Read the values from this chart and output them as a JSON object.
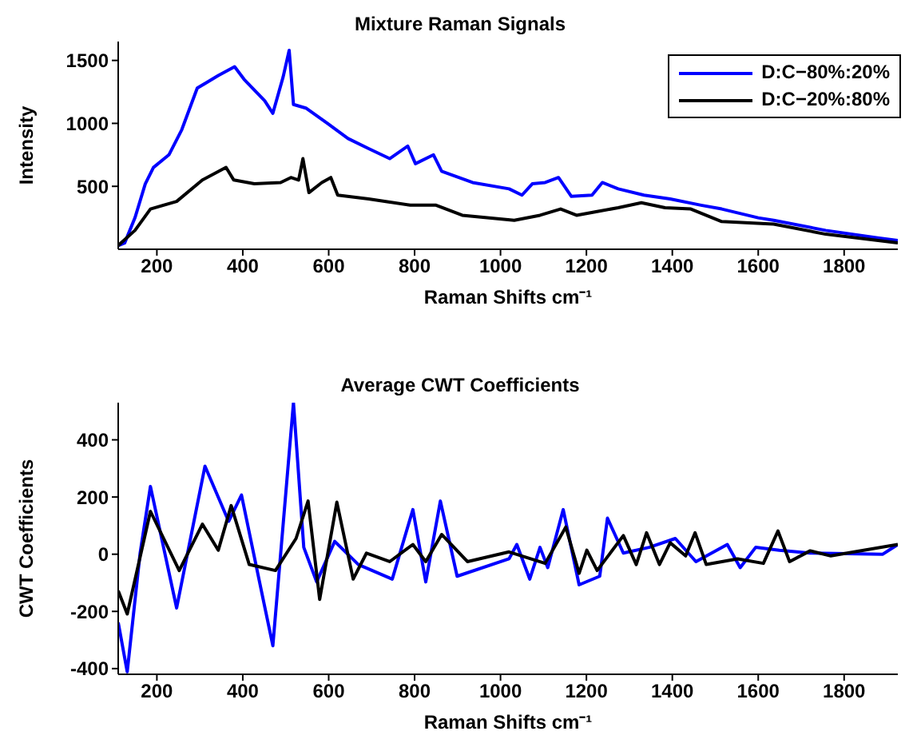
{
  "chart_data": [
    {
      "type": "line",
      "title": "Mixture Raman Signals",
      "xlabel": "Raman Shifts cm⁻¹",
      "ylabel": "Intensity",
      "xlim": [
        110,
        1925
      ],
      "xticks": [
        200,
        400,
        600,
        800,
        1000,
        1200,
        1400,
        1600,
        1800
      ],
      "ylim": [
        0,
        1650
      ],
      "yticks": [
        500,
        1000,
        1500
      ],
      "legend": "top right",
      "grid": false,
      "series": [
        {
          "name": "D:C−80%:20%",
          "color": "#0000ff",
          "x": [
            110,
            125,
            149,
            173,
            192,
            228,
            258,
            294,
            343,
            381,
            403,
            451,
            470,
            494,
            508,
            518,
            548,
            597,
            645,
            693,
            742,
            784,
            802,
            844,
            863,
            935,
            1020,
            1050,
            1074,
            1104,
            1135,
            1165,
            1213,
            1237,
            1274,
            1334,
            1395,
            1467,
            1515,
            1600,
            1636,
            1757,
            1878,
            1925
          ],
          "values": [
            30,
            50,
            250,
            520,
            650,
            750,
            950,
            1280,
            1380,
            1450,
            1350,
            1180,
            1080,
            1370,
            1580,
            1150,
            1120,
            1000,
            880,
            800,
            720,
            820,
            680,
            750,
            620,
            530,
            480,
            430,
            520,
            530,
            570,
            420,
            430,
            530,
            480,
            430,
            400,
            350,
            320,
            250,
            230,
            150,
            90,
            70
          ]
        },
        {
          "name": "D:C−20%:80%",
          "color": "#000000",
          "x": [
            110,
            149,
            185,
            246,
            306,
            361,
            379,
            427,
            488,
            512,
            530,
            540,
            554,
            584,
            605,
            621,
            693,
            790,
            850,
            911,
            1032,
            1092,
            1140,
            1177,
            1225,
            1274,
            1328,
            1383,
            1443,
            1515,
            1636,
            1757,
            1925
          ],
          "values": [
            30,
            150,
            320,
            380,
            550,
            650,
            550,
            520,
            530,
            570,
            550,
            720,
            450,
            530,
            570,
            430,
            400,
            350,
            350,
            270,
            230,
            270,
            320,
            270,
            300,
            330,
            370,
            330,
            320,
            220,
            200,
            120,
            50
          ]
        }
      ]
    },
    {
      "type": "line",
      "title": "Average CWT Coefficients",
      "xlabel": "Raman Shifts cm⁻¹",
      "ylabel": "CWT Coefficients",
      "xlim": [
        110,
        1925
      ],
      "xticks": [
        200,
        400,
        600,
        800,
        1000,
        1200,
        1400,
        1600,
        1800
      ],
      "ylim": [
        -420,
        530
      ],
      "yticks": [
        -400,
        -200,
        0,
        200,
        400
      ],
      "grid": false,
      "series": [
        {
          "color": "#0000ff",
          "x": [
            110,
            131,
            161,
            185,
            246,
            312,
            367,
            397,
            439,
            470,
            494,
            518,
            542,
            572,
            614,
            669,
            748,
            796,
            826,
            860,
            899,
            1020,
            1038,
            1068,
            1092,
            1110,
            1146,
            1183,
            1231,
            1249,
            1286,
            1346,
            1407,
            1455,
            1528,
            1558,
            1594,
            1649,
            1721,
            1890,
            1925
          ],
          "values": [
            -239,
            -411,
            4,
            237,
            -188,
            308,
            115,
            207,
            -97,
            -320,
            105,
            530,
            24,
            -97,
            45,
            -36,
            -87,
            156,
            -97,
            186,
            -77,
            -16,
            34,
            -87,
            24,
            -47,
            156,
            -107,
            -77,
            126,
            4,
            24,
            55,
            -26,
            34,
            -47,
            24,
            14,
            4,
            0,
            34
          ]
        },
        {
          "color": "#000000",
          "x": [
            110,
            131,
            185,
            252,
            306,
            343,
            373,
            415,
            476,
            524,
            552,
            579,
            619,
            657,
            688,
            742,
            796,
            826,
            863,
            923,
            1020,
            1104,
            1152,
            1183,
            1201,
            1225,
            1286,
            1316,
            1340,
            1370,
            1395,
            1431,
            1453,
            1479,
            1552,
            1612,
            1646,
            1673,
            1721,
            1769,
            1925
          ],
          "values": [
            -128,
            -209,
            150,
            -57,
            105,
            14,
            170,
            -36,
            -57,
            55,
            186,
            -158,
            182,
            -87,
            4,
            -26,
            34,
            -26,
            69,
            -26,
            8,
            -32,
            95,
            -67,
            14,
            -57,
            65,
            -36,
            75,
            -36,
            40,
            -6,
            75,
            -36,
            -16,
            -32,
            81,
            -26,
            12,
            -6,
            34
          ]
        }
      ]
    }
  ]
}
